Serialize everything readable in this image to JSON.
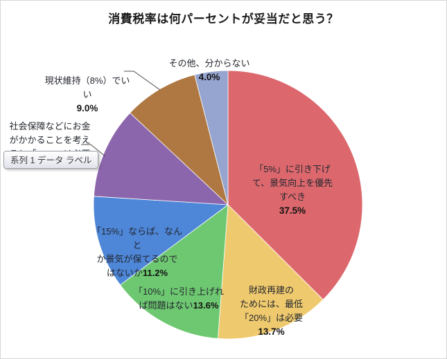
{
  "title": "消費税率は何パーセントが妥当だと思う？",
  "tooltip": {
    "text": "系列 1 データ ラベル"
  },
  "chart_data": {
    "type": "pie",
    "title": "消費税率は何パーセントが妥当だと思う？",
    "series_name": "系列 1",
    "start_angle_deg": 0,
    "direction": "clockwise",
    "slices": [
      {
        "label": "「5%」に引き下げて、景気向上を優先すべき",
        "value": 37.5,
        "display_pct": "37.5%",
        "color": "#dc686d"
      },
      {
        "label": "財政再建のためには、最低「20%」は必要",
        "value": 13.7,
        "display_pct": "13.7%",
        "color": "#efc96d"
      },
      {
        "label": "「10%」に引き上げれば問題はない",
        "value": 13.6,
        "display_pct": "13.6%",
        "color": "#6ec871"
      },
      {
        "label": "「15%」ならば、なんとか景気が保てるのではないか",
        "value": 11.2,
        "display_pct": "11.2%",
        "color": "#4e86d8"
      },
      {
        "label": "社会保障などにお金がかかることを考えると「25%」は必要",
        "value": 11.0,
        "display_pct": "",
        "color": "#8c66ac"
      },
      {
        "label": "現状維持（8%）でいい",
        "value": 9.0,
        "display_pct": "9.0%",
        "color": "#af7843"
      },
      {
        "label": "その他、分からない",
        "value": 4.0,
        "display_pct": "4.0%",
        "color": "#95a5cf"
      }
    ]
  },
  "labels": {
    "slice_5pct": {
      "text": "「5%」に引き下げ\nて、景気向上を優先\nすべき",
      "pct": "37.5%"
    },
    "slice_20pct": {
      "text": "財政再建の\nためには、最低\n「20%」は必要",
      "pct": "13.7%"
    },
    "slice_10pct": {
      "text": "「10%」に引き上げれ\nば問題はない",
      "pct": "13.6%"
    },
    "slice_15pct": {
      "text": "「15%」ならば、なんと\nか景気が保てるので\nはないか",
      "pct": "11.2%"
    },
    "slice_25pct": {
      "text": "社会保障などにお金\nがかかることを考え\nると「25%」は必要"
    },
    "slice_8pct": {
      "text": "現状維持（8%）でいい",
      "pct": "9.0%"
    },
    "slice_other": {
      "text": "その他、分からない",
      "pct": "4.0%"
    }
  }
}
